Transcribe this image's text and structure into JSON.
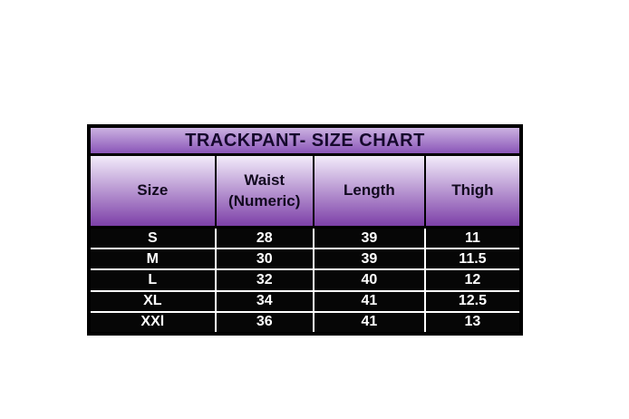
{
  "title": "TRACKPANT- SIZE CHART",
  "header_cells": [
    {
      "name": "size",
      "lines": [
        "Size"
      ]
    },
    {
      "name": "waist",
      "lines": [
        "Waist",
        "(Numeric)"
      ]
    },
    {
      "name": "length",
      "lines": [
        "Length"
      ]
    },
    {
      "name": "thigh",
      "lines": [
        "Thigh"
      ]
    }
  ],
  "colors": {
    "title_grad_top": "#cbb2e1",
    "title_grad_bottom": "#8a55b8",
    "title_text": "#16092d",
    "header_grad_top": "#f2ebfa",
    "header_grad_bottom": "#7d40a8",
    "header_text": "#120a1f",
    "row_bg": "#060606",
    "row_text": "#ffffff",
    "divider": "#ffffff",
    "border": "#000000"
  },
  "chart_data": {
    "type": "table",
    "title": "TRACKPANT- SIZE CHART",
    "columns": [
      "Size",
      "Waist (Numeric)",
      "Length",
      "Thigh"
    ],
    "rows": [
      [
        "S",
        "28",
        "39",
        "11"
      ],
      [
        "M",
        "30",
        "39",
        "11.5"
      ],
      [
        "L",
        "32",
        "40",
        "12"
      ],
      [
        "XL",
        "34",
        "41",
        "12.5"
      ],
      [
        "XXl",
        "36",
        "41",
        "13"
      ]
    ]
  }
}
